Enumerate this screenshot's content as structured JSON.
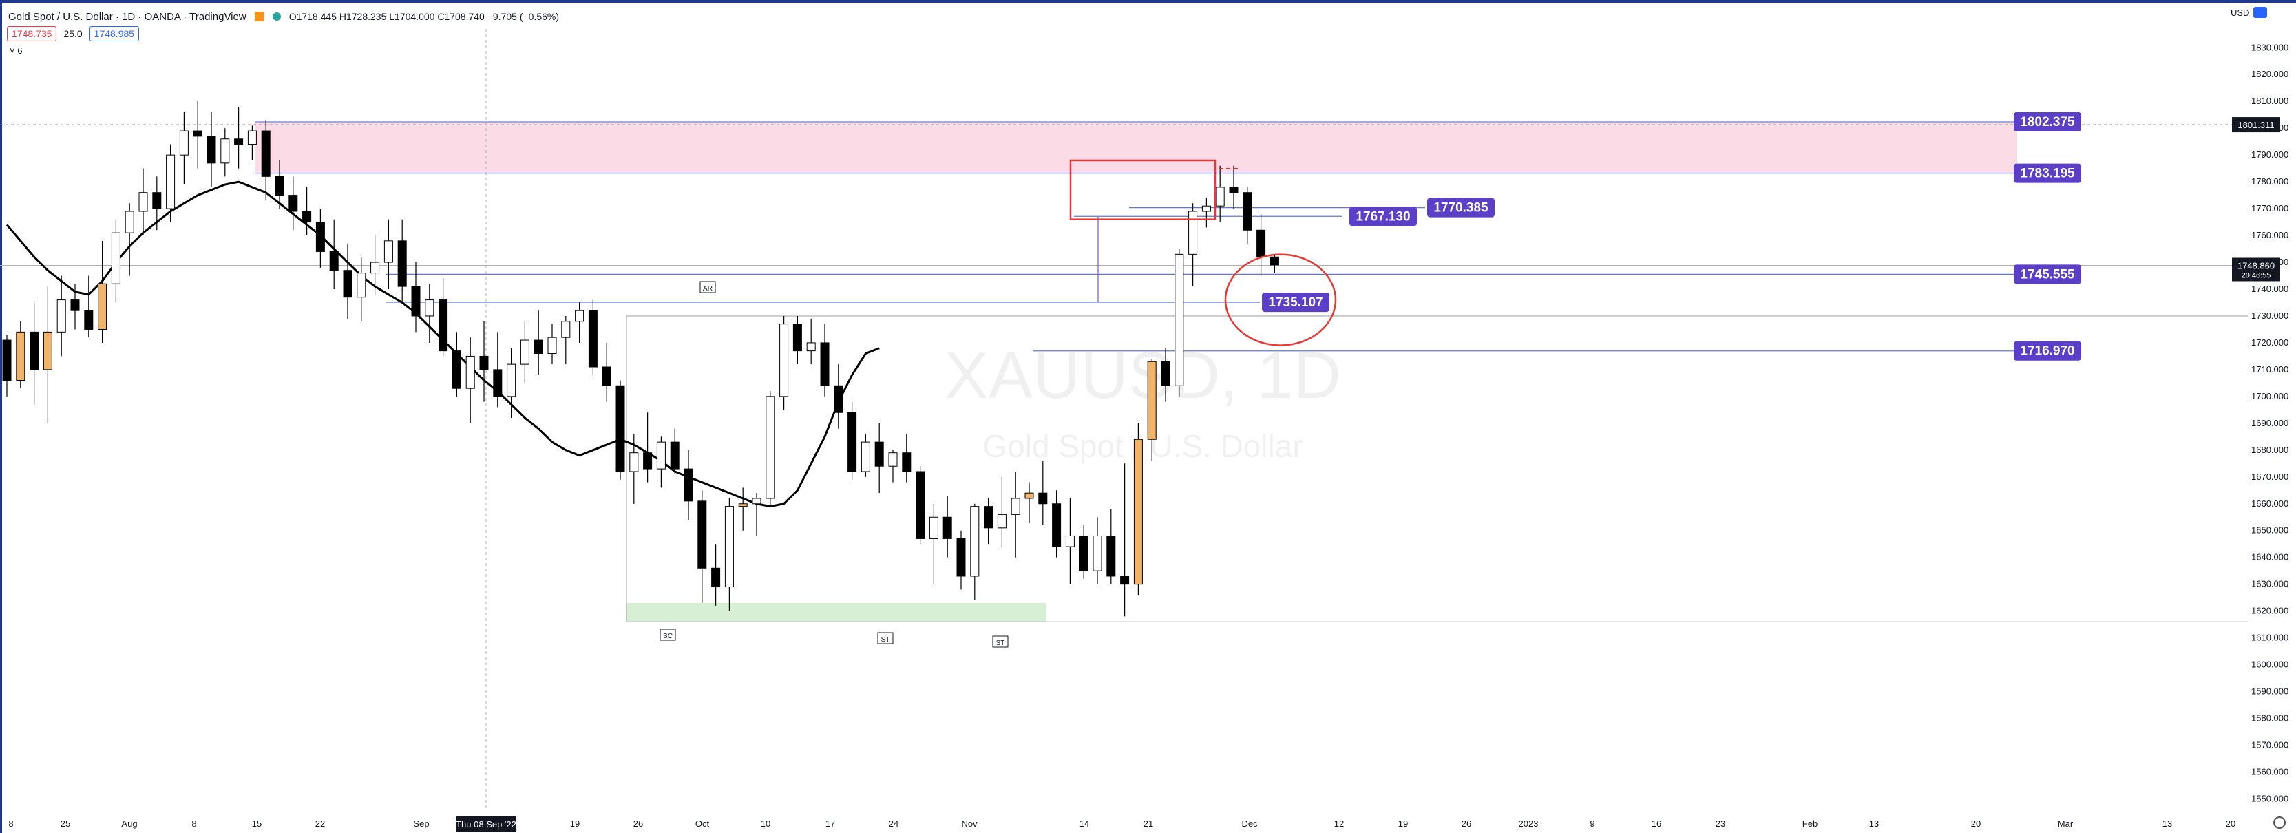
{
  "header": {
    "title": "Gold Spot / U.S. Dollar · 1D · OANDA · TradingView",
    "ohlc": "O1718.445  H1728.235  L1704.000  C1708.740  −9.705 (−0.56%)",
    "sell_price": "1748.735",
    "spread": "25.0",
    "buy_price": "1748.985",
    "indicator_collapse": "˅ 6",
    "currency": "USD",
    "status_color": "#26a69a"
  },
  "watermark": {
    "symbol": "XAUUSD, 1D",
    "name": "Gold Spot / U.S. Dollar"
  },
  "chart_data": {
    "type": "candlestick",
    "y_axis": {
      "ticks": [
        1830,
        1820,
        1810,
        1800,
        1790,
        1780,
        1770,
        1760,
        1750,
        1740,
        1730,
        1720,
        1710,
        1700,
        1690,
        1680,
        1670,
        1660,
        1650,
        1640,
        1630,
        1620,
        1610,
        1600,
        1590,
        1580,
        1570,
        1560,
        1550
      ],
      "ylim": [
        1546,
        1837
      ]
    },
    "x_axis": {
      "tick_labels": [
        "8",
        "25",
        "Aug",
        "8",
        "15",
        "22",
        "Sep",
        "Thu 08 Sep '22",
        "19",
        "26",
        "Oct",
        "10",
        "17",
        "24",
        "Nov",
        "14",
        "21",
        "Dec",
        "12",
        "19",
        "26",
        "2023",
        "9",
        "16",
        "23",
        "Feb",
        "13",
        "20",
        "Mar",
        "13",
        "20"
      ],
      "highlighted": "Thu 08 Sep '22"
    },
    "candles": [
      [
        1721,
        1723,
        1700,
        1706
      ],
      [
        1706,
        1728,
        1703,
        1724
      ],
      [
        1724,
        1735,
        1697,
        1710
      ],
      [
        1710,
        1741,
        1690,
        1724
      ],
      [
        1724,
        1745,
        1715,
        1736
      ],
      [
        1736,
        1742,
        1725,
        1732
      ],
      [
        1732,
        1745,
        1722,
        1725
      ],
      [
        1725,
        1758,
        1720,
        1742
      ],
      [
        1742,
        1766,
        1735,
        1761
      ],
      [
        1761,
        1772,
        1745,
        1769
      ],
      [
        1769,
        1785,
        1760,
        1776
      ],
      [
        1776,
        1782,
        1762,
        1770
      ],
      [
        1770,
        1794,
        1765,
        1790
      ],
      [
        1790,
        1806,
        1779,
        1799
      ],
      [
        1799,
        1810,
        1785,
        1797
      ],
      [
        1797,
        1806,
        1778,
        1787
      ],
      [
        1787,
        1800,
        1782,
        1796
      ],
      [
        1796,
        1808,
        1785,
        1794
      ],
      [
        1794,
        1801,
        1788,
        1799
      ],
      [
        1799,
        1803,
        1773,
        1782
      ],
      [
        1782,
        1788,
        1770,
        1775
      ],
      [
        1775,
        1782,
        1762,
        1769
      ],
      [
        1769,
        1778,
        1760,
        1765
      ],
      [
        1765,
        1770,
        1748,
        1754
      ],
      [
        1754,
        1766,
        1740,
        1747
      ],
      [
        1747,
        1757,
        1729,
        1737
      ],
      [
        1737,
        1752,
        1728,
        1746
      ],
      [
        1746,
        1760,
        1738,
        1750
      ],
      [
        1750,
        1766,
        1740,
        1758
      ],
      [
        1758,
        1766,
        1735,
        1741
      ],
      [
        1741,
        1750,
        1724,
        1730
      ],
      [
        1730,
        1742,
        1720,
        1736
      ],
      [
        1736,
        1744,
        1715,
        1717
      ],
      [
        1717,
        1724,
        1700,
        1703
      ],
      [
        1703,
        1722,
        1690,
        1715
      ],
      [
        1715,
        1728,
        1698,
        1710
      ],
      [
        1710,
        1724,
        1696,
        1700
      ],
      [
        1700,
        1718,
        1692,
        1712
      ],
      [
        1712,
        1728,
        1705,
        1721
      ],
      [
        1721,
        1732,
        1708,
        1716
      ],
      [
        1716,
        1727,
        1712,
        1722
      ],
      [
        1722,
        1730,
        1712,
        1728
      ],
      [
        1728,
        1735,
        1720,
        1732
      ],
      [
        1732,
        1736,
        1708,
        1711
      ],
      [
        1711,
        1720,
        1698,
        1704
      ],
      [
        1704,
        1706,
        1669,
        1672
      ],
      [
        1672,
        1686,
        1660,
        1679
      ],
      [
        1679,
        1694,
        1668,
        1673
      ],
      [
        1673,
        1685,
        1666,
        1683
      ],
      [
        1683,
        1688,
        1671,
        1673
      ],
      [
        1673,
        1680,
        1654,
        1661
      ],
      [
        1661,
        1665,
        1623,
        1636
      ],
      [
        1636,
        1645,
        1622,
        1629
      ],
      [
        1629,
        1662,
        1620,
        1659
      ],
      [
        1659,
        1666,
        1650,
        1660
      ],
      [
        1660,
        1664,
        1648,
        1662
      ],
      [
        1662,
        1702,
        1659,
        1700
      ],
      [
        1700,
        1730,
        1695,
        1727
      ],
      [
        1727,
        1730,
        1712,
        1717
      ],
      [
        1717,
        1729,
        1712,
        1720
      ],
      [
        1720,
        1727,
        1700,
        1704
      ],
      [
        1704,
        1712,
        1688,
        1694
      ],
      [
        1694,
        1698,
        1669,
        1672
      ],
      [
        1672,
        1686,
        1670,
        1683
      ],
      [
        1683,
        1690,
        1664,
        1674
      ],
      [
        1674,
        1680,
        1668,
        1679
      ],
      [
        1679,
        1686,
        1668,
        1672
      ],
      [
        1672,
        1674,
        1645,
        1647
      ],
      [
        1647,
        1660,
        1630,
        1655
      ],
      [
        1655,
        1663,
        1640,
        1647
      ],
      [
        1647,
        1650,
        1628,
        1633
      ],
      [
        1633,
        1660,
        1624,
        1659
      ],
      [
        1659,
        1662,
        1645,
        1651
      ],
      [
        1651,
        1670,
        1644,
        1656
      ],
      [
        1656,
        1672,
        1640,
        1662
      ],
      [
        1662,
        1668,
        1653,
        1664
      ],
      [
        1664,
        1676,
        1652,
        1660
      ],
      [
        1660,
        1665,
        1640,
        1644
      ],
      [
        1644,
        1662,
        1630,
        1648
      ],
      [
        1648,
        1652,
        1632,
        1635
      ],
      [
        1635,
        1655,
        1630,
        1648
      ],
      [
        1648,
        1658,
        1630,
        1633
      ],
      [
        1633,
        1675,
        1618,
        1630
      ],
      [
        1630,
        1690,
        1626,
        1684
      ],
      [
        1684,
        1714,
        1676,
        1713
      ],
      [
        1713,
        1718,
        1698,
        1704
      ],
      [
        1704,
        1755,
        1700,
        1753
      ],
      [
        1753,
        1772,
        1741,
        1769
      ],
      [
        1769,
        1774,
        1763,
        1771
      ],
      [
        1771,
        1786,
        1765,
        1778
      ],
      [
        1778,
        1786,
        1770,
        1776
      ],
      [
        1776,
        1778,
        1757,
        1762
      ],
      [
        1762,
        1768,
        1745,
        1752
      ],
      [
        1752,
        1753,
        1746,
        1749
      ]
    ],
    "moving_average": [
      1764,
      1758,
      1752,
      1747,
      1743,
      1739,
      1738,
      1743,
      1750,
      1756,
      1761,
      1765,
      1769,
      1772,
      1775,
      1777,
      1779,
      1780,
      1778,
      1776,
      1772,
      1768,
      1764,
      1760,
      1755,
      1750,
      1745,
      1741,
      1738,
      1735,
      1731,
      1726,
      1721,
      1716,
      1711,
      1706,
      1702,
      1697,
      1692,
      1688,
      1683,
      1680,
      1678,
      1680,
      1682,
      1684,
      1682,
      1679,
      1676,
      1672,
      1670,
      1668,
      1666,
      1664,
      1662,
      1660,
      1659,
      1660,
      1665,
      1675,
      1685,
      1698,
      1708,
      1716,
      1718
    ],
    "zones": [
      {
        "type": "supply",
        "from": 1783.195,
        "to": 1802.375,
        "color": "#fadbe6"
      },
      {
        "type": "demand",
        "from": 1616,
        "to": 1623,
        "color": "#d7f0d5"
      }
    ],
    "levels": [
      {
        "label": "1802.375",
        "value": 1802.375,
        "color": "#5b3fc8"
      },
      {
        "label": "1783.195",
        "value": 1783.195,
        "color": "#5b3fc8"
      },
      {
        "label": "1770.385",
        "value": 1770.385,
        "color": "#5b3fc8"
      },
      {
        "label": "1767.130",
        "value": 1767.13,
        "color": "#5b3fc8"
      },
      {
        "label": "1745.555",
        "value": 1745.555,
        "color": "#5b3fc8"
      },
      {
        "label": "1735.107",
        "value": 1735.107,
        "color": "#5b3fc8"
      },
      {
        "label": "1716.970",
        "value": 1716.97,
        "color": "#5b3fc8"
      }
    ],
    "price_axis_tags": [
      {
        "label": "1801.311",
        "value": 1801.311
      },
      {
        "label": "1748.860",
        "value": 1748.86,
        "sub": "20:46:55"
      }
    ],
    "wyckoff_labels": [
      "AR",
      "SC",
      "ST",
      "ST"
    ],
    "colors": {
      "up": "#ffffff",
      "down": "#000000",
      "highlight": "#f0b56b",
      "accent": "#5b3fc8",
      "annotation": "#e53935"
    }
  }
}
